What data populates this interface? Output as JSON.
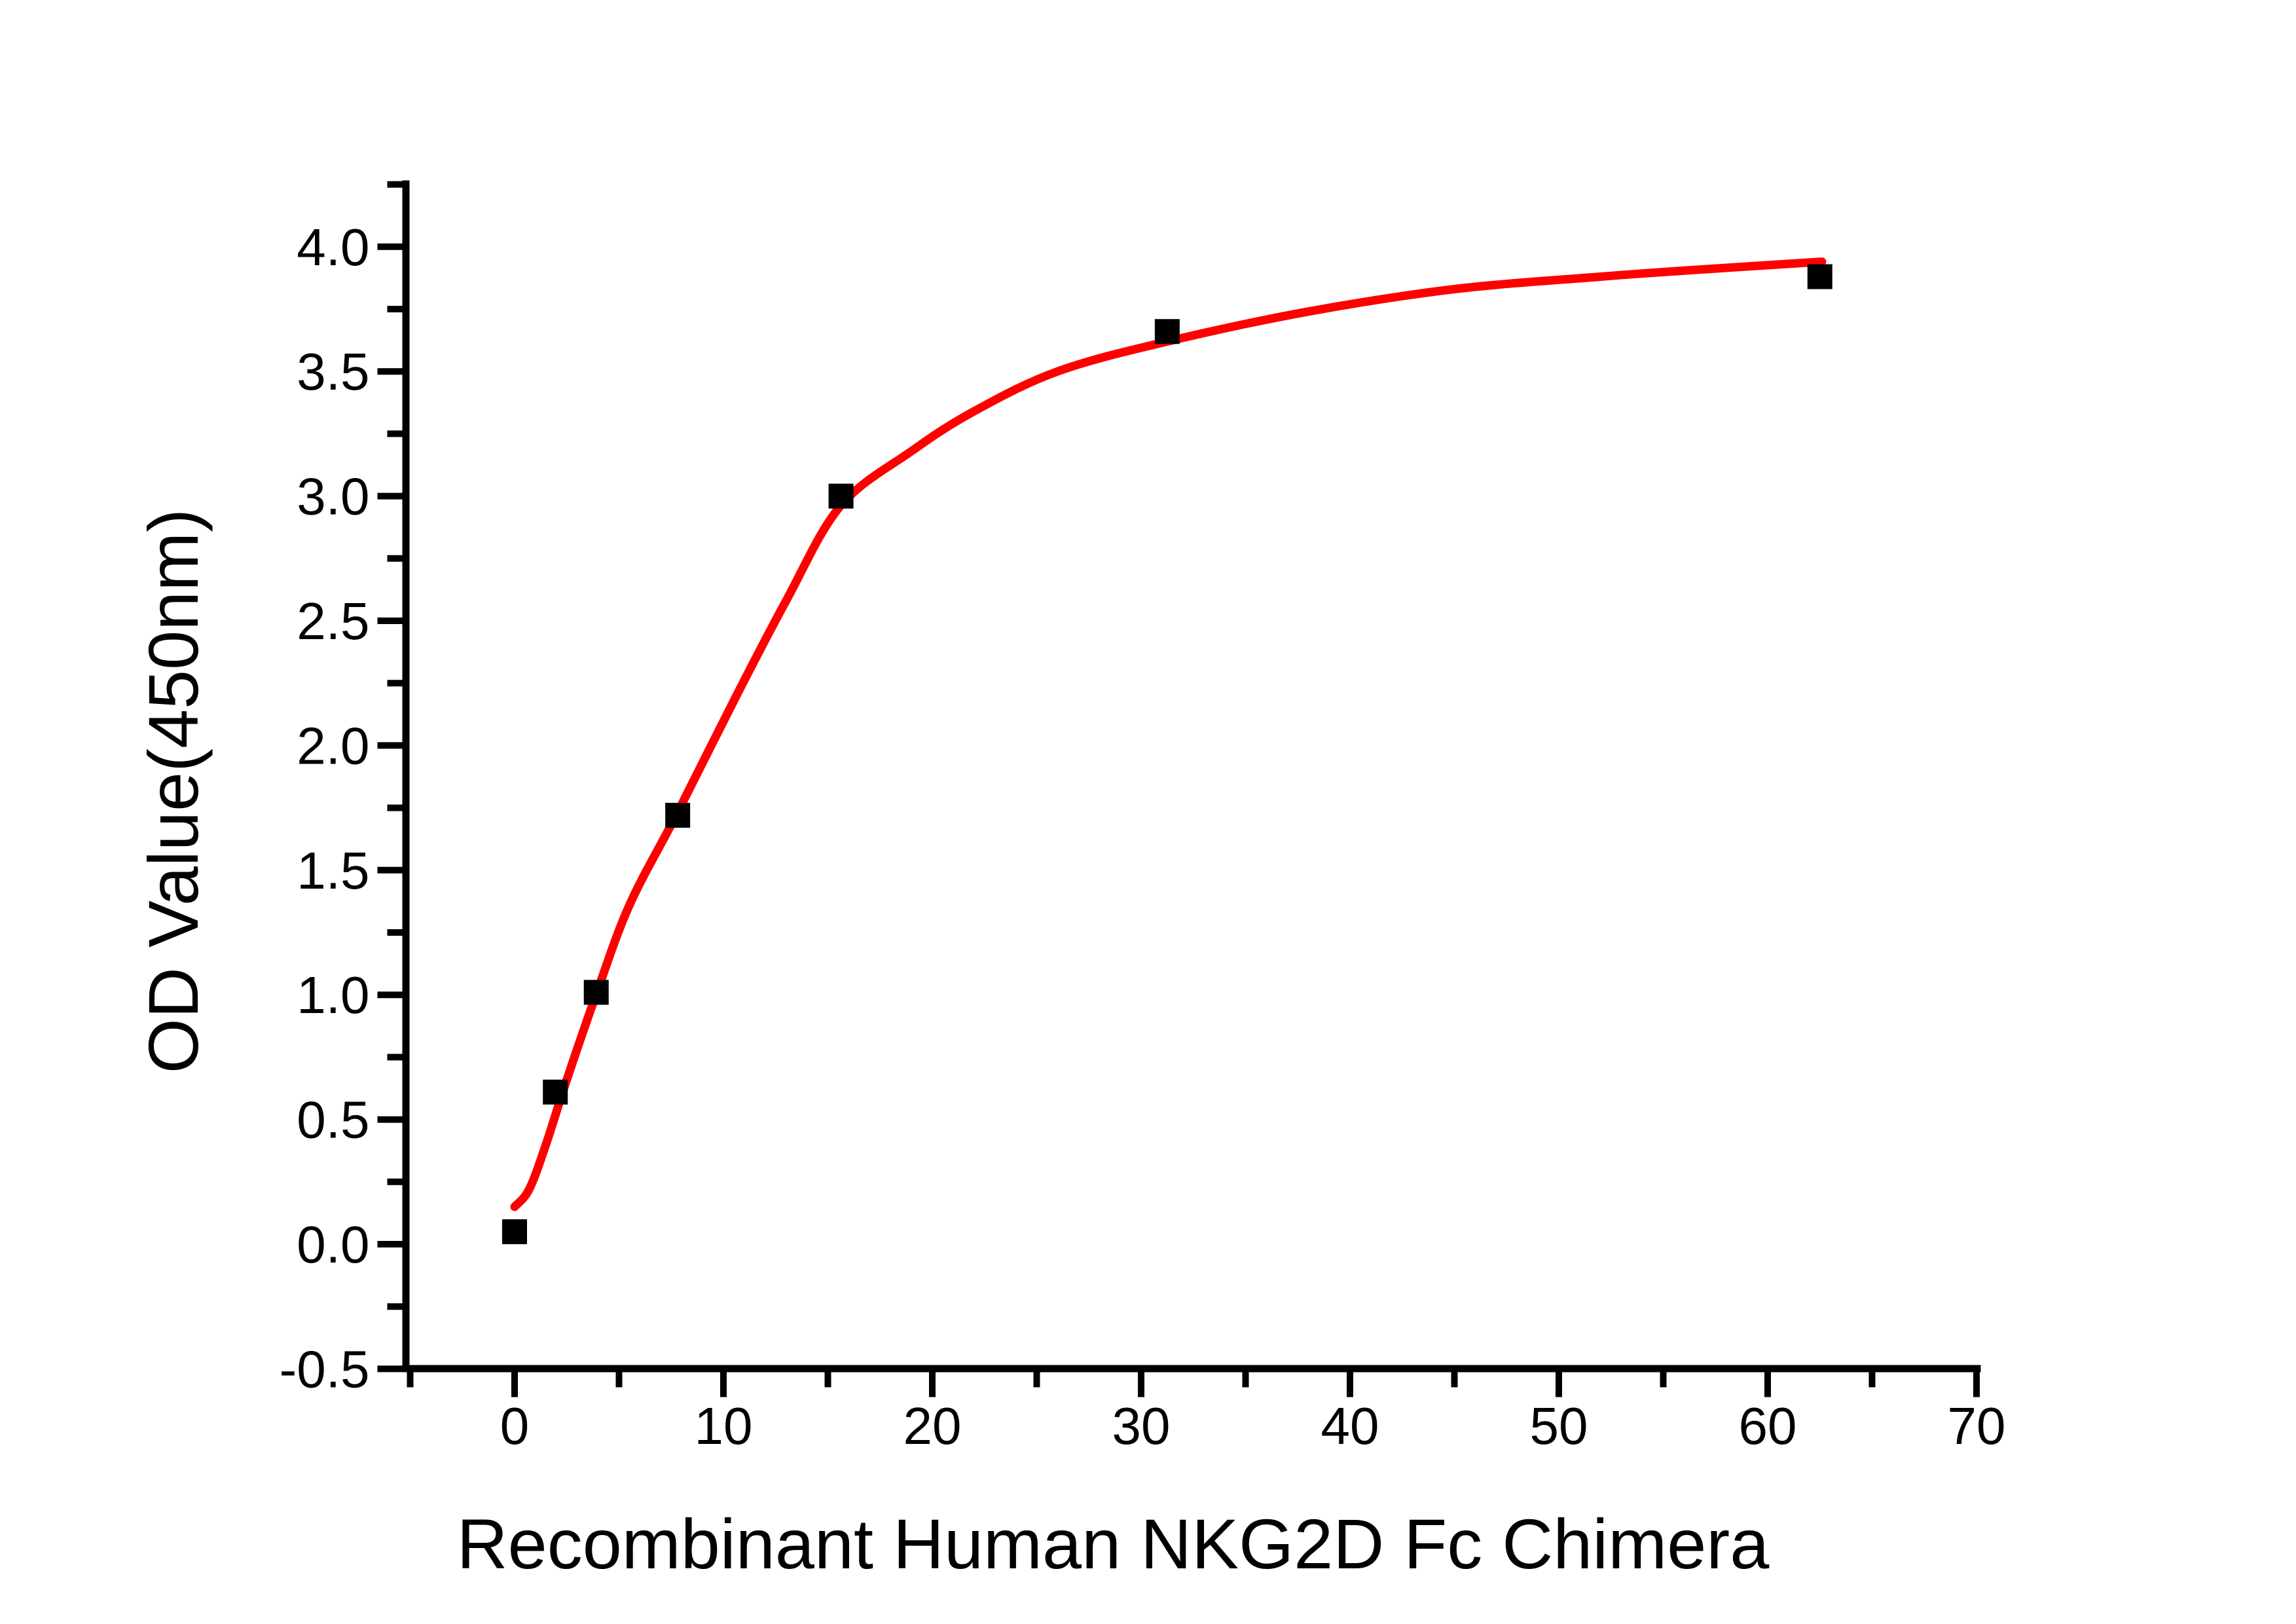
{
  "chart_data": {
    "type": "scatter",
    "title": "",
    "xlabel": "Recombinant Human NKG2D Fc Chimera",
    "ylabel": "OD Value(450nm)",
    "xlim": [
      -5.4,
      70
    ],
    "ylim": [
      -0.5,
      4.25
    ],
    "grid": false,
    "legend": null,
    "x_major_ticks": [
      0,
      10,
      20,
      30,
      40,
      50,
      60,
      70
    ],
    "x_major_tick_labels": [
      "0",
      "10",
      "20",
      "30",
      "40",
      "50",
      "60",
      "70"
    ],
    "x_minor_ticks": [
      -5,
      5,
      15,
      25,
      35,
      45,
      55,
      65
    ],
    "y_major_ticks": [
      -0.5,
      0.0,
      0.5,
      1.0,
      1.5,
      2.0,
      2.5,
      3.0,
      3.5,
      4.0
    ],
    "y_major_tick_labels": [
      "-0.5",
      "0.0",
      "0.5",
      "1.0",
      "1.5",
      "2.0",
      "2.5",
      "3.0",
      "3.5",
      "4.0"
    ],
    "y_minor_ticks": [
      -0.25,
      0.25,
      0.75,
      1.25,
      1.75,
      2.25,
      2.75,
      3.25,
      3.75,
      4.25
    ],
    "series": [
      {
        "name": "measured-od-points",
        "type": "scatter",
        "marker": "filled-square",
        "x": [
          0,
          1.95,
          3.91,
          7.81,
          15.63,
          31.25,
          62.5
        ],
        "y": [
          0.05,
          0.61,
          1.01,
          1.72,
          3.0,
          3.66,
          3.88
        ]
      },
      {
        "name": "fit-curve",
        "type": "line",
        "x": [
          0,
          0.7,
          1.5,
          2.5,
          3.9,
          5.5,
          7.8,
          10.5,
          13,
          15.6,
          19,
          22,
          26,
          31.25,
          38,
          45,
          52,
          57,
          62.6
        ],
        "y": [
          0.15,
          0.22,
          0.4,
          0.66,
          1.0,
          1.36,
          1.73,
          2.18,
          2.58,
          2.96,
          3.18,
          3.34,
          3.5,
          3.62,
          3.74,
          3.83,
          3.88,
          3.91,
          3.94
        ]
      }
    ]
  },
  "style": {
    "background_color": "#ffffff",
    "axis_color": "#000000",
    "marker_color": "#000000",
    "curve_color": "#ff0000",
    "tick_label_color": "#000000"
  }
}
